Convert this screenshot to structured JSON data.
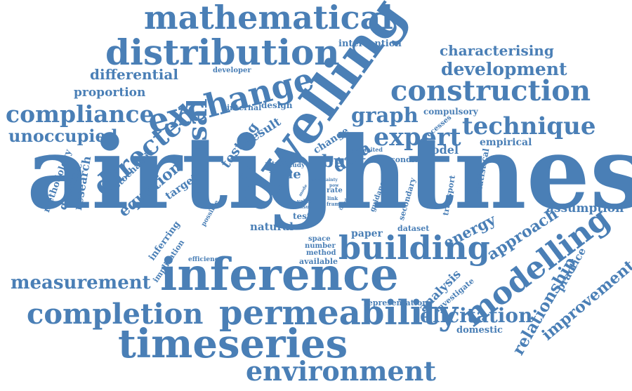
{
  "color": "#4a7fb6",
  "words": [
    "mathematical",
    "distribution",
    "intervention",
    "characterising",
    "development",
    "differential",
    "developer",
    "exchange",
    "dwelling",
    "construction",
    "proportion",
    "compliance",
    "internal",
    "design",
    "compulsory",
    "graph",
    "result",
    "change",
    "processes",
    "technique",
    "unoccupied",
    "directed",
    "causal",
    "testing",
    "data",
    "expert",
    "empirical",
    "limited",
    "model",
    "methodology",
    "stochastic",
    "equation",
    "attma",
    "study",
    "built",
    "condition",
    "statistical",
    "dynamic",
    "target",
    "time",
    "research",
    "airtightness",
    "rate",
    "link",
    "frame",
    "guidance",
    "secondary",
    "transport",
    "assumption",
    "possible",
    "inferring",
    "value",
    "issue",
    "test",
    "natural",
    "paper",
    "dataset",
    "energy",
    "approach",
    "implication",
    "space",
    "number",
    "method",
    "available",
    "building",
    "modelling",
    "efficiency",
    "practice",
    "measurement",
    "inference",
    "relationship",
    "analysis",
    "investigate",
    "representation",
    "completion",
    "permeability",
    "elicitation",
    "domestic",
    "timeseries",
    "environment",
    "improvement",
    "mode",
    "pow",
    "trend",
    "uncertainty"
  ]
}
